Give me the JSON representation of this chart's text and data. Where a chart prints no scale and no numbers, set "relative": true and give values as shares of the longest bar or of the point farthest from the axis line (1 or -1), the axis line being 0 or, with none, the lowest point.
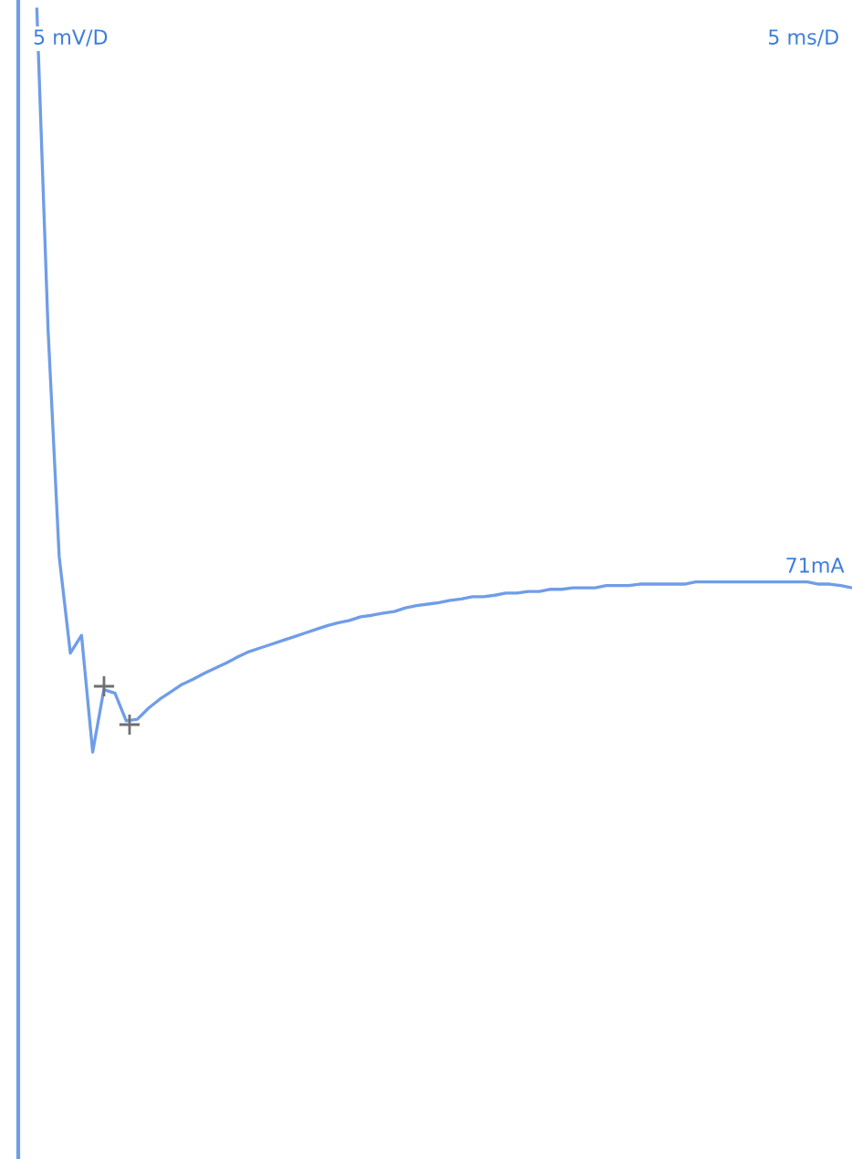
{
  "chart_data": {
    "type": "line",
    "relative": true,
    "categories": [
      null,
      null,
      null,
      null,
      null,
      null,
      null,
      null,
      null,
      null,
      null,
      null,
      null,
      null,
      null,
      null,
      null,
      null,
      null,
      null,
      null,
      null,
      null,
      null,
      null,
      null,
      null,
      null,
      null,
      null,
      null,
      null,
      null,
      null,
      null,
      null,
      null,
      null,
      null,
      null,
      null,
      null,
      null,
      null,
      null,
      null,
      null,
      null,
      null,
      null,
      null,
      null,
      null,
      null,
      null,
      null,
      null,
      null,
      null,
      null,
      null,
      null,
      null,
      null,
      null,
      null,
      null,
      null,
      null,
      null,
      null,
      null,
      null,
      null
    ],
    "series": [
      {
        "color": "#6f9de8",
        "values": [
          1.0,
          0.57,
          0.263,
          0.133,
          0.157,
          0.0,
          0.084,
          0.079,
          0.042,
          0.044,
          0.059,
          0.071,
          0.081,
          0.091,
          0.098,
          0.106,
          0.113,
          0.12,
          0.128,
          0.135,
          0.14,
          0.145,
          0.15,
          0.155,
          0.16,
          0.165,
          0.17,
          0.174,
          0.177,
          0.182,
          0.184,
          0.187,
          0.189,
          0.194,
          0.197,
          0.199,
          0.201,
          0.204,
          0.206,
          0.209,
          0.209,
          0.211,
          0.214,
          0.214,
          0.216,
          0.216,
          0.219,
          0.219,
          0.221,
          0.221,
          0.221,
          0.224,
          0.224,
          0.224,
          0.226,
          0.226,
          0.226,
          0.226,
          0.226,
          0.229,
          0.229,
          0.229,
          0.229,
          0.229,
          0.229,
          0.229,
          0.229,
          0.229,
          0.229,
          0.229,
          0.226,
          0.226,
          0.224,
          0.221
        ]
      }
    ],
    "annotations": [
      "5 mV/D",
      "5 ms/D",
      "71mA"
    ]
  }
}
